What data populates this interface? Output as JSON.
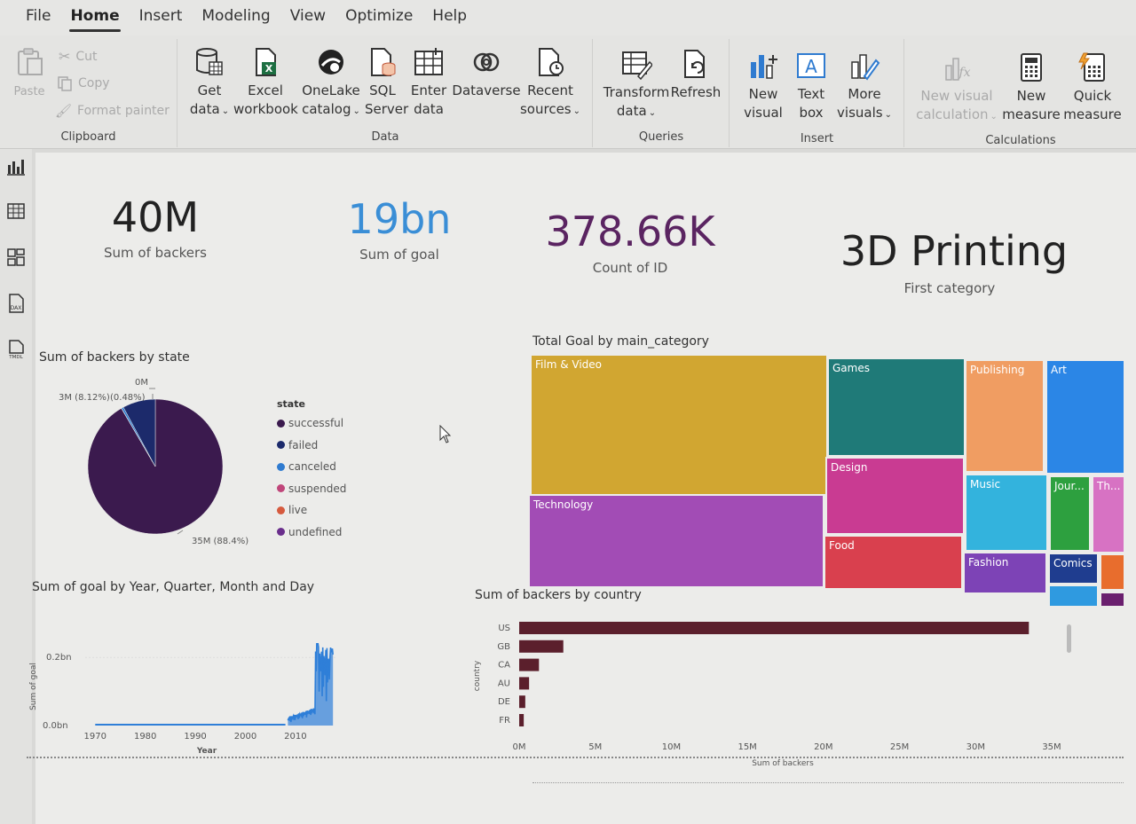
{
  "menu": {
    "items": [
      {
        "label": "File"
      },
      {
        "label": "Home",
        "active": true
      },
      {
        "label": "Insert"
      },
      {
        "label": "Modeling"
      },
      {
        "label": "View"
      },
      {
        "label": "Optimize"
      },
      {
        "label": "Help"
      }
    ]
  },
  "ribbon": {
    "clipboard": {
      "label": "Clipboard",
      "paste": "Paste",
      "cut": "Cut",
      "copy": "Copy",
      "format_painter": "Format painter"
    },
    "data": {
      "label": "Data",
      "get_data": [
        "Get",
        "data"
      ],
      "excel": [
        "Excel",
        "workbook"
      ],
      "onelake": [
        "OneLake",
        "catalog"
      ],
      "sql": [
        "SQL",
        "Server"
      ],
      "enter": [
        "Enter",
        "data"
      ],
      "dataverse": "Dataverse",
      "recent": [
        "Recent",
        "sources"
      ]
    },
    "queries": {
      "label": "Queries",
      "transform": [
        "Transform",
        "data"
      ],
      "refresh": "Refresh"
    },
    "insert": {
      "label": "Insert",
      "new_visual": [
        "New",
        "visual"
      ],
      "text_box": [
        "Text",
        "box"
      ],
      "more_visuals": [
        "More",
        "visuals"
      ]
    },
    "calculations": {
      "label": "Calculations",
      "new_visual_calc": [
        "New visual",
        "calculation"
      ],
      "new_measure": [
        "New",
        "measure"
      ],
      "quick_measure": [
        "Quick",
        "measure"
      ]
    }
  },
  "rail": {
    "icons": [
      "report-view-icon",
      "table-view-icon",
      "model-view-icon",
      "dax-query-icon",
      "tmdl-view-icon"
    ],
    "dax_text": "DAX",
    "tmdl_text": "TMDL"
  },
  "kpis": [
    {
      "value": "40M",
      "label": "Sum of backers",
      "color": "#222222"
    },
    {
      "value": "19bn",
      "label": "Sum of goal",
      "color": "#3a8ed6"
    },
    {
      "value": "378.66K",
      "label": "Count of ID",
      "color": "#5a2461"
    },
    {
      "value": "3D Printing",
      "label": "First category",
      "color": "#222222"
    }
  ],
  "pie": {
    "title": "Sum of backers by state",
    "legend_title": "state",
    "legend": [
      {
        "name": "successful",
        "color": "#3b1a4e"
      },
      {
        "name": "failed",
        "color": "#1c2a6b"
      },
      {
        "name": "canceled",
        "color": "#2f7bd0"
      },
      {
        "name": "suspended",
        "color": "#c0467a"
      },
      {
        "name": "live",
        "color": "#d65a3e"
      },
      {
        "name": "undefined",
        "color": "#6a2e8c"
      }
    ],
    "labels": {
      "top": "0M",
      "left": "3M (8.12%)",
      "left2": "(0.48%)",
      "bottom": "35M (88.4%)"
    }
  },
  "treemap": {
    "title": "Total Goal by main_category",
    "tiles": [
      {
        "name": "Film & Video",
        "color": "#d1a631"
      },
      {
        "name": "Technology",
        "color": "#a24cb5"
      },
      {
        "name": "Games",
        "color": "#1f7a78"
      },
      {
        "name": "Design",
        "color": "#c93b92"
      },
      {
        "name": "Food",
        "color": "#d9404e"
      },
      {
        "name": "Publishing",
        "color": "#f09d62"
      },
      {
        "name": "Art",
        "color": "#2b86e6"
      },
      {
        "name": "Music",
        "color": "#33b3dd"
      },
      {
        "name": "Jour...",
        "color": "#2da03f"
      },
      {
        "name": "Th...",
        "color": "#d772c3"
      },
      {
        "name": "Fashion",
        "color": "#7d43b6"
      },
      {
        "name": "Comics",
        "color": "#1f3d8f"
      },
      {
        "name": "",
        "color": "#e86d2d"
      },
      {
        "name": "",
        "color": "#2f9ae0"
      },
      {
        "name": "",
        "color": "#6a1f6e"
      }
    ]
  },
  "line_chart": {
    "title": "Sum of goal by Year, Quarter, Month and Day",
    "ylabel": "Sum of goal",
    "xlabel": "Year",
    "yticks": [
      "0.2bn",
      "0.0bn"
    ],
    "xticks": [
      "1970",
      "1980",
      "1990",
      "2000",
      "2010"
    ],
    "color": "#2f7fd8"
  },
  "bar_chart": {
    "title": "Sum of backers by country",
    "ylabel": "country",
    "xlabel": "Sum of backers",
    "color": "#5b1f2c",
    "xticks": [
      "0M",
      "5M",
      "10M",
      "15M",
      "20M",
      "25M",
      "30M",
      "35M"
    ]
  },
  "chart_data": [
    {
      "type": "pie",
      "title": "Sum of backers by state",
      "categories": [
        "successful",
        "failed",
        "canceled",
        "suspended",
        "live",
        "undefined"
      ],
      "values": [
        35,
        3,
        0.19,
        0.01,
        0.01,
        0.0
      ],
      "units": "M backers",
      "legend": "right"
    },
    {
      "type": "bar",
      "title": "Sum of backers by country",
      "categories": [
        "US",
        "GB",
        "CA",
        "AU",
        "DE",
        "FR"
      ],
      "values": [
        33.5,
        2.9,
        1.3,
        0.65,
        0.4,
        0.3
      ],
      "xlabel": "Sum of backers",
      "ylabel": "country",
      "xlim": [
        0,
        35
      ],
      "units": "M"
    },
    {
      "type": "line",
      "title": "Sum of goal by Year, Quarter, Month and Day",
      "xlabel": "Year",
      "ylabel": "Sum of goal",
      "x": [
        1970,
        1980,
        1990,
        2000,
        2008,
        2009,
        2010,
        2011,
        2012,
        2013,
        2014,
        2015,
        2016,
        2017,
        2018
      ],
      "y": [
        0.0,
        0.0,
        0.0,
        0.0,
        0.0,
        0.01,
        0.02,
        0.03,
        0.03,
        0.05,
        0.22,
        0.25,
        0.18,
        0.2,
        0.12
      ],
      "units": "bn",
      "ylim": [
        0,
        0.25
      ]
    },
    {
      "type": "treemap",
      "title": "Total Goal by main_category",
      "categories": [
        "Film & Video",
        "Technology",
        "Games",
        "Design",
        "Food",
        "Publishing",
        "Art",
        "Music",
        "Jour...",
        "Th...",
        "Fashion",
        "Comics"
      ],
      "values": [
        28,
        16,
        8,
        5.6,
        3.8,
        5.2,
        4.6,
        2.6,
        1.4,
        0.9,
        1.6,
        1.0
      ]
    }
  ]
}
